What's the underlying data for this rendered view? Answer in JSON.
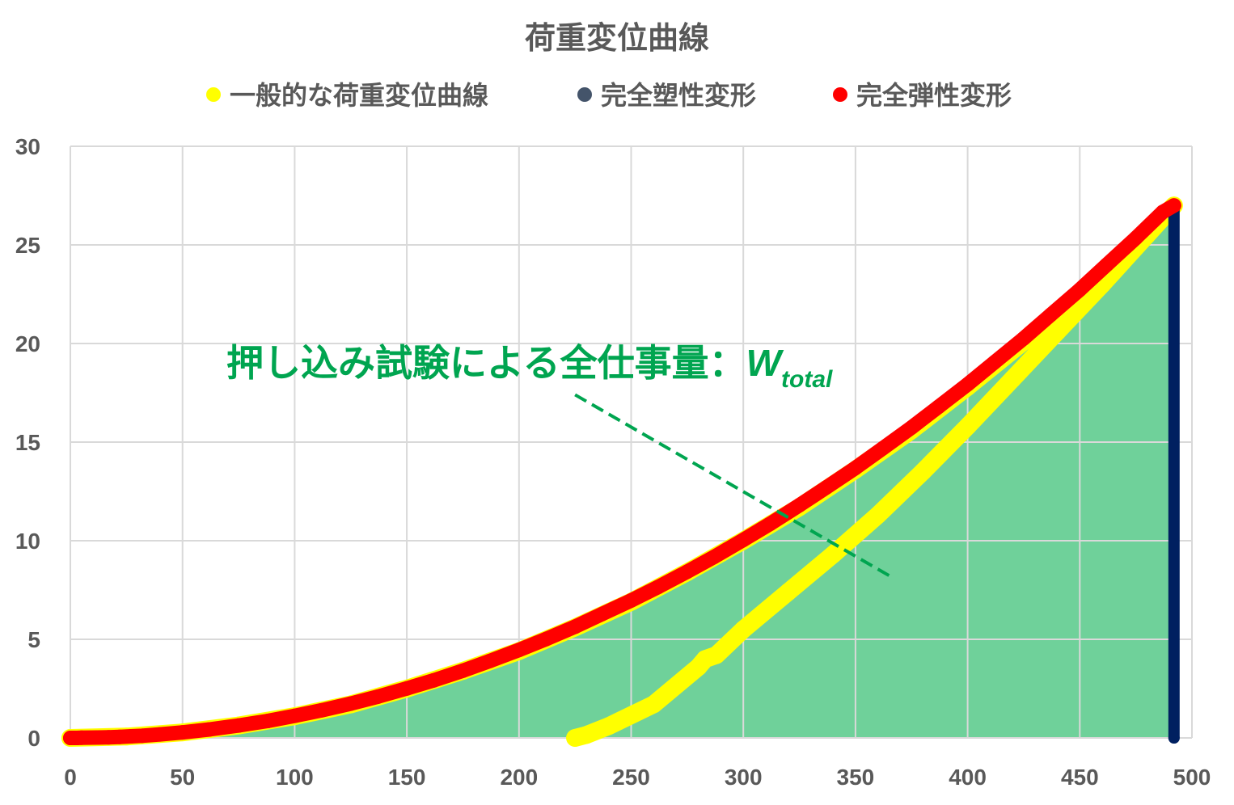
{
  "chart_data": {
    "type": "scatter",
    "title": "荷重変位曲線",
    "xlabel": "",
    "ylabel": "",
    "xlim": [
      0,
      500
    ],
    "ylim": [
      0,
      30
    ],
    "xticks": [
      "0",
      "50",
      "100",
      "150",
      "200",
      "250",
      "300",
      "350",
      "400",
      "450",
      "500"
    ],
    "yticks": [
      "0",
      "5",
      "10",
      "15",
      "20",
      "25",
      "30"
    ],
    "grid": true,
    "legend_position": "top",
    "series": [
      {
        "name": "一般的な荷重変位曲線",
        "color": "#ffff00",
        "x": [
          0,
          25,
          50,
          75,
          100,
          125,
          150,
          175,
          200,
          225,
          250,
          275,
          300,
          325,
          350,
          375,
          400,
          425,
          450,
          475,
          492,
          480,
          460,
          440,
          420,
          400,
          380,
          360,
          340,
          320,
          300,
          288,
          283,
          280,
          260,
          240,
          230,
          225
        ],
        "y": [
          0,
          0.07,
          0.28,
          0.63,
          1.1,
          1.7,
          2.5,
          3.4,
          4.4,
          5.6,
          6.9,
          8.4,
          10.0,
          11.7,
          13.6,
          15.6,
          17.8,
          20.1,
          22.5,
          25.1,
          27.0,
          25.5,
          23.0,
          20.6,
          18.2,
          15.8,
          13.5,
          11.3,
          9.3,
          7.4,
          5.5,
          4.2,
          4.0,
          3.6,
          1.7,
          0.6,
          0.15,
          0
        ]
      },
      {
        "name": "完全塑性変形",
        "color": "#002060",
        "x": [
          492,
          492
        ],
        "y": [
          27.0,
          0
        ]
      },
      {
        "name": "完全弾性変形",
        "color": "#ff0000",
        "x": [
          0,
          1,
          3,
          5,
          12,
          17,
          22,
          27,
          32,
          40,
          50,
          62,
          75,
          88,
          100,
          112,
          125,
          137,
          150,
          162,
          175,
          187,
          200,
          212,
          225,
          237,
          250,
          262,
          275,
          287,
          300,
          312,
          325,
          337,
          350,
          362,
          375,
          387,
          400,
          412,
          425,
          437,
          450,
          462,
          475,
          487,
          492
        ],
        "y": [
          0,
          0,
          0,
          0.01,
          0.02,
          0.03,
          0.05,
          0.08,
          0.11,
          0.18,
          0.28,
          0.43,
          0.63,
          0.86,
          1.12,
          1.4,
          1.74,
          2.09,
          2.51,
          2.92,
          3.41,
          3.9,
          4.46,
          5.01,
          5.64,
          6.28,
          6.97,
          7.65,
          8.43,
          9.18,
          10.04,
          10.86,
          11.8,
          12.7,
          13.69,
          14.67,
          15.74,
          16.79,
          17.93,
          19.05,
          20.26,
          21.45,
          22.73,
          23.99,
          25.35,
          26.67,
          27.0
        ]
      }
    ],
    "area": {
      "color": "#6fd19a",
      "x": [
        0,
        25,
        50,
        75,
        100,
        125,
        150,
        175,
        200,
        225,
        250,
        275,
        300,
        325,
        350,
        375,
        400,
        425,
        450,
        475,
        492
      ],
      "y": [
        0,
        0.07,
        0.28,
        0.63,
        1.1,
        1.7,
        2.5,
        3.4,
        4.4,
        5.6,
        6.9,
        8.4,
        10.0,
        11.7,
        13.6,
        15.6,
        17.8,
        20.1,
        22.5,
        25.1,
        27.0
      ]
    },
    "annotation": {
      "text": "押し込み試験による全仕事量：",
      "symbol": "W",
      "subscript": "total",
      "color": "#00a550",
      "pointer_from": [
        225,
        17.4
      ],
      "pointer_to": [
        367,
        8.1
      ]
    }
  }
}
